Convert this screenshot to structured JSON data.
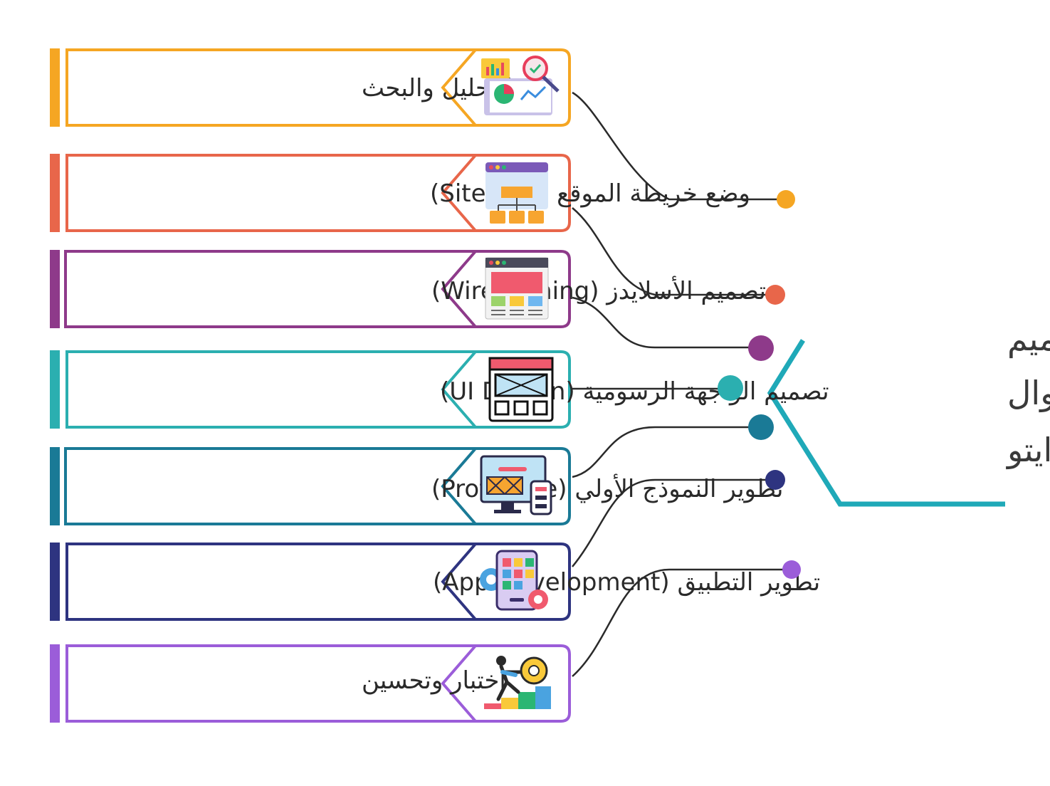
{
  "title": {
    "lines": [
      "خطوات تصميم",
      "تطبيــق جــوال",
      "من خـلال رايتو"
    ]
  },
  "steps": [
    {
      "label": "التحليل والبحث",
      "color": "#F5A623",
      "icon": "analysis-report-icon"
    },
    {
      "label": "وضع خريطة الموقع (Sitemap)",
      "color": "#E8664A",
      "icon": "sitemap-icon"
    },
    {
      "label": "تصميم الأسلايدز (Wireframing)",
      "color": "#8E3A8A",
      "icon": "wireframe-window-icon"
    },
    {
      "label": "تصميم الواجهة الرسومية (UI Design)",
      "color": "#2BAFB0",
      "icon": "ui-design-window-icon"
    },
    {
      "label": "تطوير النموذج الأولي (Prototype)",
      "color": "#1A7A96",
      "icon": "prototype-devices-icon"
    },
    {
      "label": "تطوير التطبيق (App Development)",
      "color": "#2E3480",
      "icon": "app-gear-icon"
    },
    {
      "label": "اختبار وتحسين",
      "color": "#9B5DD9",
      "icon": "person-gear-steps-icon"
    }
  ],
  "accent": {
    "title_bracket": "#1FA9B8"
  }
}
